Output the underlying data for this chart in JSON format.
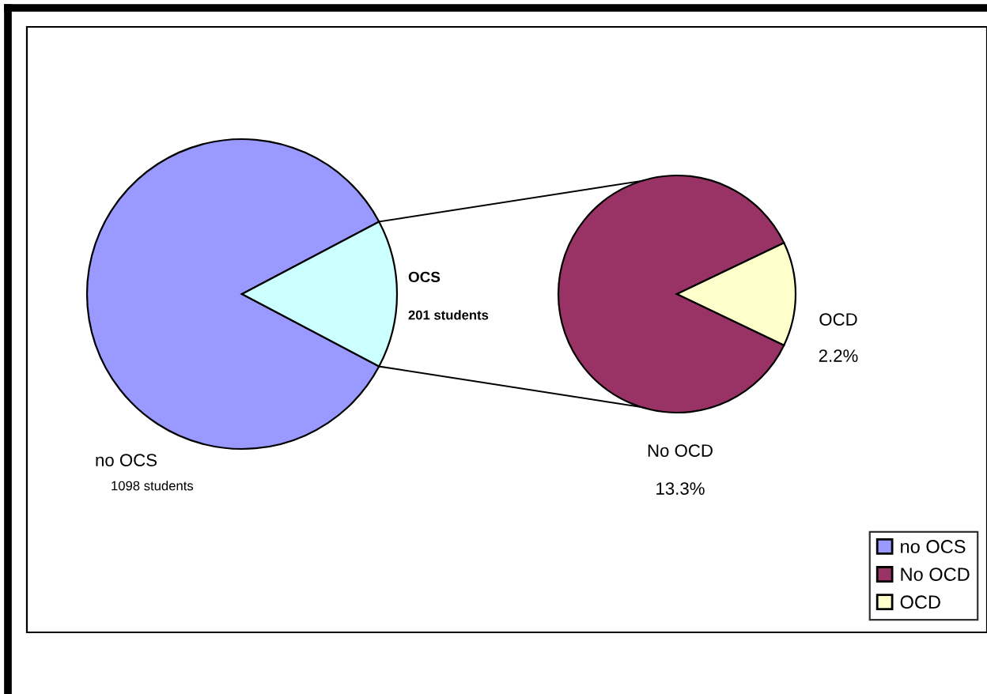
{
  "chart_data": [
    {
      "type": "pie",
      "categories": [
        "no OCS",
        "OCS"
      ],
      "values": [
        1098,
        201
      ],
      "colors": [
        "#9999ff",
        "#ccffff"
      ],
      "value_labels": [
        "1098 students",
        "201 students"
      ],
      "legend": "bottom right"
    },
    {
      "type": "pie",
      "categories": [
        "No OCD",
        "OCD"
      ],
      "values": [
        13.3,
        2.2
      ],
      "colors": [
        "#993366",
        "#ffffcc"
      ],
      "value_labels": [
        "13.3%",
        "2.2%"
      ],
      "legend": "bottom right"
    }
  ]
}
